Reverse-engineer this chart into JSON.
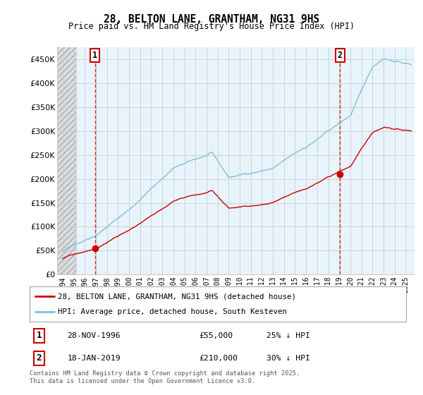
{
  "title": "28, BELTON LANE, GRANTHAM, NG31 9HS",
  "subtitle": "Price paid vs. HM Land Registry's House Price Index (HPI)",
  "hpi_color": "#7fbfdf",
  "price_color": "#cc0000",
  "marker_color": "#cc0000",
  "grid_color": "#cccccc",
  "chart_bg": "#e8f4fb",
  "ylim": [
    0,
    475000
  ],
  "yticks": [
    0,
    50000,
    100000,
    150000,
    200000,
    250000,
    300000,
    350000,
    400000,
    450000
  ],
  "ytick_labels": [
    "£0",
    "£50K",
    "£100K",
    "£150K",
    "£200K",
    "£250K",
    "£300K",
    "£350K",
    "£400K",
    "£450K"
  ],
  "sale1_date": 1996.91,
  "sale1_price": 55000,
  "sale2_date": 2019.05,
  "sale2_price": 210000,
  "legend_line1": "28, BELTON LANE, GRANTHAM, NG31 9HS (detached house)",
  "legend_line2": "HPI: Average price, detached house, South Kesteven",
  "table_row1": [
    "1",
    "28-NOV-1996",
    "£55,000",
    "25% ↓ HPI"
  ],
  "table_row2": [
    "2",
    "18-JAN-2019",
    "£210,000",
    "30% ↓ HPI"
  ],
  "footnote": "Contains HM Land Registry data © Crown copyright and database right 2025.\nThis data is licensed under the Open Government Licence v3.0.",
  "xlim_start": 1993.5,
  "xlim_end": 2025.8,
  "hatch_end": 1995.2
}
